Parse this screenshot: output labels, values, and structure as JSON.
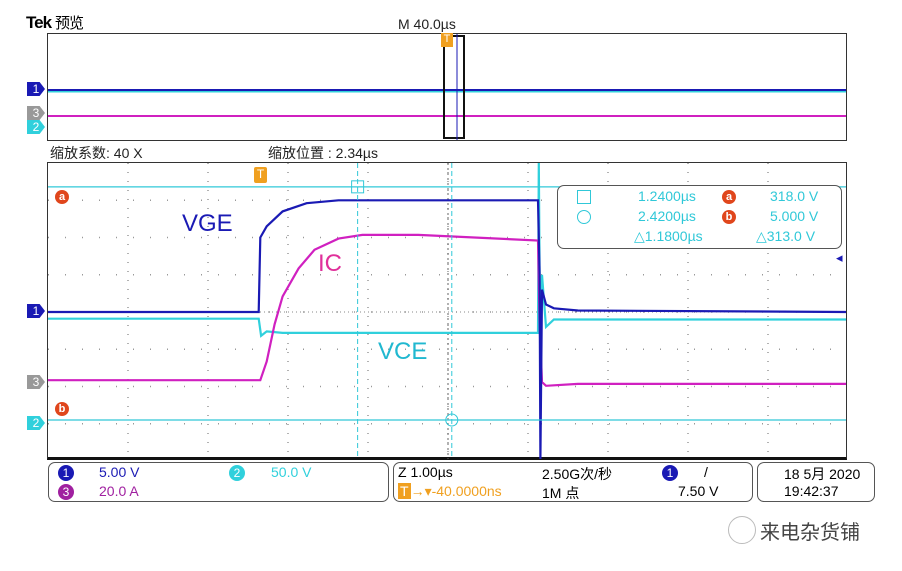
{
  "header": {
    "brand": "Tek",
    "mode": "预览",
    "main_timebase": "M 40.0µs"
  },
  "zoom": {
    "factor_label": "缩放系数: 40 X",
    "position_label": "缩放位置 : 2.34µs"
  },
  "colors": {
    "ch1": "#1a1ab4",
    "ch2": "#30d0dc",
    "ch3": "#d020c0",
    "cursor": "#30c8d8",
    "trigger": "#f0a020",
    "cursor_badge": "#e0461c"
  },
  "markers": {
    "ch1": "1",
    "ch2": "2",
    "ch3": "3",
    "trigger": "T",
    "cursor_a": "a",
    "cursor_b": "b"
  },
  "cursor_readout": {
    "t1": "1.2400µs",
    "t2": "2.4200µs",
    "dt": "△1.1800µs",
    "va": "318.0 V",
    "vb": "5.000 V",
    "dv": "△313.0 V"
  },
  "status": {
    "ch1_scale": "5.00 V",
    "ch2_scale": "50.0 V",
    "ch3_scale": "20.0 A",
    "zoom_timebase": "Z 1.00µs",
    "trigger_pos": "-40.0000ns",
    "sample_rate": "2.50G次/秒",
    "record_length": "1M 点",
    "trigger_source": "1",
    "trigger_slope": "/",
    "trigger_level": "7.50 V",
    "date": "18 5月 2020",
    "time": "19:42:37"
  },
  "watermark": "来电杂货铺",
  "chart_data": {
    "type": "line",
    "xlabel": "",
    "ylabel": "",
    "x_units": "µs",
    "xlim": [
      -2.64,
      7.36
    ],
    "grid": true,
    "series": [
      {
        "name": "VGE",
        "channel": "1",
        "units": "V",
        "points": [
          [
            -2.64,
            0
          ],
          [
            0,
            0
          ],
          [
            0.02,
            10
          ],
          [
            0.1,
            11.5
          ],
          [
            0.3,
            13.5
          ],
          [
            0.6,
            14.6
          ],
          [
            1.0,
            15
          ],
          [
            3.5,
            15
          ],
          [
            3.52,
            5
          ],
          [
            3.53,
            -20
          ],
          [
            3.55,
            3
          ],
          [
            3.6,
            1
          ],
          [
            3.7,
            0.5
          ],
          [
            4.0,
            0.2
          ],
          [
            7.36,
            0
          ]
        ]
      },
      {
        "name": "VCE",
        "channel": "2",
        "units": "V",
        "points": [
          [
            -2.64,
            141
          ],
          [
            0,
            141
          ],
          [
            0.03,
            118
          ],
          [
            0.1,
            124
          ],
          [
            0.3,
            122
          ],
          [
            3.5,
            122
          ],
          [
            3.51,
            350
          ],
          [
            3.53,
            60
          ],
          [
            3.55,
            200
          ],
          [
            3.6,
            130
          ],
          [
            3.7,
            140
          ],
          [
            7.36,
            140
          ]
        ]
      },
      {
        "name": "IC",
        "channel": "3",
        "units": "A",
        "points": [
          [
            -2.64,
            0
          ],
          [
            0.02,
            0
          ],
          [
            0.1,
            10
          ],
          [
            0.2,
            30
          ],
          [
            0.3,
            45
          ],
          [
            0.5,
            60
          ],
          [
            0.7,
            70
          ],
          [
            1.0,
            76
          ],
          [
            1.3,
            78
          ],
          [
            2.0,
            78
          ],
          [
            3.5,
            75
          ],
          [
            3.52,
            30
          ],
          [
            3.55,
            -1
          ],
          [
            3.6,
            -3
          ],
          [
            4.0,
            -2
          ],
          [
            7.36,
            -2
          ]
        ]
      }
    ]
  }
}
